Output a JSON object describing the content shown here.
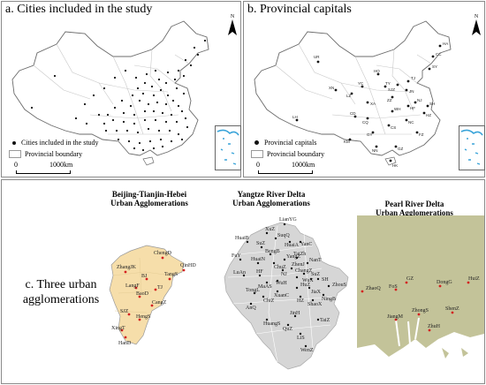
{
  "colors": {
    "panel_border": "#8a8a8a",
    "china_outline": "#6b6b6b",
    "province_line": "#c8c8c8",
    "city_dot": "#111111",
    "sea_blue": "#3aa4d9",
    "jjj_fill": "#f6deaa",
    "yrd_fill": "#d6d6d6",
    "prd_fill": "#c3c399",
    "ua_city_dot": "#d42020"
  },
  "panel_a": {
    "title": "a. Cities included in the study",
    "legend_cities": "Cities included in the study",
    "legend_boundary": "Provincial boundary",
    "scale_zero": "0",
    "scale_km": "1000km",
    "north": "N"
  },
  "panel_b": {
    "title": "b. Provincial capitals",
    "legend_capitals": "Provincial capitals",
    "legend_boundary": "Provincial boundary",
    "scale_zero": "0",
    "scale_km": "1000km",
    "north": "N",
    "province_codes": [
      "HA",
      "CC",
      "UR",
      "SY",
      "HO",
      "TJ",
      "YC",
      "XN",
      "LZ",
      "XA",
      "TY",
      "JN",
      "SJZ",
      "ZZ",
      "NJ",
      "SH",
      "LH",
      "CD",
      "CQ",
      "WH",
      "HZ",
      "HF",
      "NC",
      "CS",
      "GY",
      "FZ",
      "KM",
      "NN",
      "GZ",
      "HK"
    ]
  },
  "panel_c": {
    "label": "c. Three urban agglomerations",
    "jjj_heading_1": "Beijing-Tianjin-Hebei",
    "jjj_heading_2": "Urban Agglomerations",
    "yrd_heading_1": "Yangtze River Delta",
    "yrd_heading_2": "Urban Agglomerations",
    "prd_heading_1": "Pearl River Delta",
    "prd_heading_2": "Urban Agglomerations",
    "jjj_cities": [
      "ChengD",
      "ZhangJK",
      "QinHD",
      "BJ",
      "TangS",
      "LangF",
      "TJ",
      "BaoD",
      "CangZ",
      "SJZ",
      "HengS",
      "XingT",
      "HanD"
    ],
    "yrd_cities": [
      "LianYG",
      "XuZ",
      "HuaiB",
      "SuqQ",
      "HuaiA",
      "YanC",
      "SuZ",
      "BengB",
      "FuY",
      "HuaiN",
      "ChuZ",
      "YangZ",
      "TaiZh",
      "NanT",
      "LuAn",
      "HF",
      "MaAS",
      "WuH",
      "NJ",
      "ZhenJ",
      "ChangZ",
      "WuX",
      "SuZ",
      "SH",
      "TongL",
      "ChiZ",
      "AnQ",
      "XuanC",
      "HuZ",
      "JiaX",
      "HZ",
      "ShaoX",
      "ZhouS",
      "NingB",
      "HuangS",
      "JinH",
      "QuZ",
      "TaiZ",
      "LiS",
      "WenZ"
    ],
    "prd_cities": [
      "ZhaoQ",
      "FoS",
      "GZ",
      "DongG",
      "HuiZ",
      "JiangM",
      "ZhongS",
      "ShenZ",
      "ZhuH"
    ]
  }
}
